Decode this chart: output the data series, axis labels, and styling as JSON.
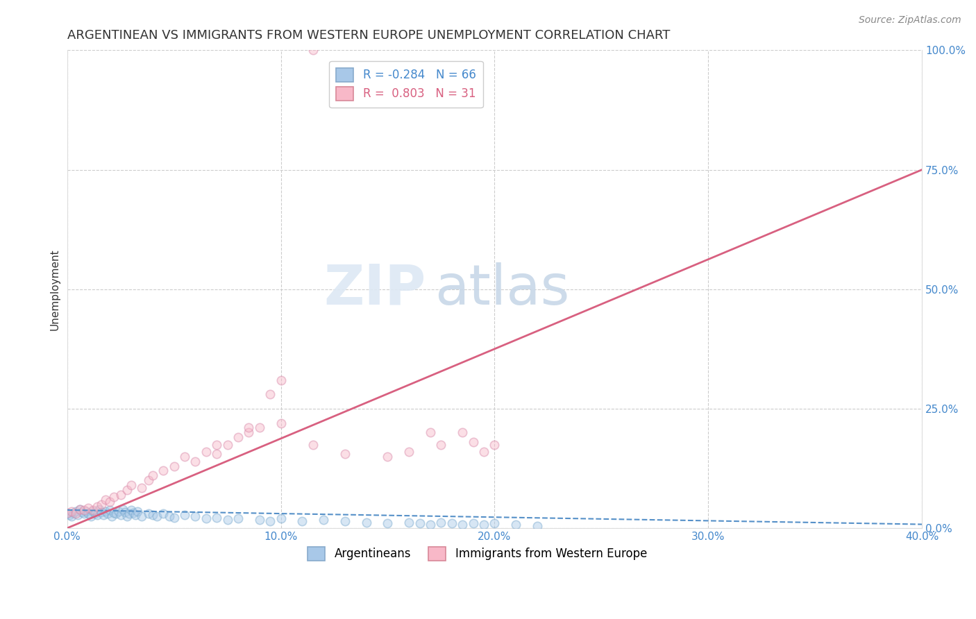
{
  "title": "ARGENTINEAN VS IMMIGRANTS FROM WESTERN EUROPE UNEMPLOYMENT CORRELATION CHART",
  "source": "Source: ZipAtlas.com",
  "xlabel_ticks": [
    "0.0%",
    "10.0%",
    "20.0%",
    "30.0%",
    "40.0%"
  ],
  "ylabel_ticks_right": [
    "0.0%",
    "25.0%",
    "50.0%",
    "75.0%",
    "100.0%"
  ],
  "ylabel_label": "Unemployment",
  "watermark_zip": "ZIP",
  "watermark_atlas": "atlas",
  "legend_entries": [
    {
      "label": "Argentineans",
      "color": "#a8c8e8",
      "outline": "#88aacc",
      "R": "-0.284",
      "N": "66"
    },
    {
      "label": "Immigrants from Western Europe",
      "color": "#f8b8c8",
      "outline": "#d88898",
      "R": "0.803",
      "N": "31"
    }
  ],
  "blue_scatter_x": [
    0.0,
    0.001,
    0.002,
    0.003,
    0.004,
    0.005,
    0.006,
    0.007,
    0.008,
    0.009,
    0.01,
    0.011,
    0.012,
    0.013,
    0.014,
    0.015,
    0.016,
    0.017,
    0.018,
    0.019,
    0.02,
    0.021,
    0.022,
    0.023,
    0.024,
    0.025,
    0.026,
    0.027,
    0.028,
    0.029,
    0.03,
    0.031,
    0.032,
    0.033,
    0.035,
    0.038,
    0.04,
    0.042,
    0.045,
    0.048,
    0.05,
    0.055,
    0.06,
    0.065,
    0.07,
    0.075,
    0.08,
    0.09,
    0.095,
    0.1,
    0.11,
    0.12,
    0.13,
    0.14,
    0.15,
    0.16,
    0.165,
    0.17,
    0.175,
    0.18,
    0.185,
    0.19,
    0.195,
    0.2,
    0.21,
    0.22
  ],
  "blue_scatter_y": [
    0.03,
    0.028,
    0.025,
    0.032,
    0.035,
    0.028,
    0.04,
    0.033,
    0.03,
    0.035,
    0.03,
    0.025,
    0.035,
    0.03,
    0.028,
    0.04,
    0.033,
    0.028,
    0.035,
    0.03,
    0.038,
    0.025,
    0.032,
    0.03,
    0.035,
    0.028,
    0.04,
    0.033,
    0.025,
    0.03,
    0.038,
    0.032,
    0.028,
    0.035,
    0.025,
    0.03,
    0.028,
    0.025,
    0.03,
    0.025,
    0.022,
    0.028,
    0.025,
    0.02,
    0.022,
    0.018,
    0.02,
    0.018,
    0.015,
    0.02,
    0.015,
    0.018,
    0.015,
    0.012,
    0.01,
    0.012,
    0.01,
    0.008,
    0.012,
    0.01,
    0.008,
    0.01,
    0.008,
    0.01,
    0.008,
    0.005
  ],
  "pink_scatter_x": [
    0.0,
    0.002,
    0.004,
    0.006,
    0.008,
    0.01,
    0.012,
    0.014,
    0.016,
    0.018,
    0.02,
    0.022,
    0.025,
    0.028,
    0.03,
    0.035,
    0.038,
    0.04,
    0.045,
    0.05,
    0.055,
    0.06,
    0.065,
    0.07,
    0.075,
    0.08,
    0.085,
    0.09,
    0.095,
    0.1,
    0.115
  ],
  "pink_scatter_y": [
    0.032,
    0.035,
    0.03,
    0.04,
    0.038,
    0.042,
    0.038,
    0.045,
    0.05,
    0.06,
    0.055,
    0.065,
    0.07,
    0.08,
    0.09,
    0.085,
    0.1,
    0.11,
    0.12,
    0.13,
    0.15,
    0.14,
    0.16,
    0.155,
    0.175,
    0.19,
    0.2,
    0.21,
    0.28,
    0.31,
    1.0
  ],
  "pink_extra_x": [
    0.07,
    0.085,
    0.1,
    0.115,
    0.13,
    0.15,
    0.16,
    0.17,
    0.175,
    0.185,
    0.19,
    0.195,
    0.2
  ],
  "pink_extra_y": [
    0.175,
    0.21,
    0.22,
    0.175,
    0.155,
    0.15,
    0.16,
    0.2,
    0.175,
    0.2,
    0.18,
    0.16,
    0.175
  ],
  "blue_line_x": [
    0.0,
    0.4
  ],
  "blue_line_y": [
    0.038,
    0.008
  ],
  "pink_line_x": [
    0.0,
    0.4
  ],
  "pink_line_y": [
    0.0,
    0.75
  ],
  "xlim": [
    0.0,
    0.4
  ],
  "ylim": [
    0.0,
    1.0
  ],
  "scatter_alpha": 0.45,
  "scatter_size": 80,
  "blue_color": "#a8c8e8",
  "blue_edge": "#7aaace",
  "pink_color": "#f8b8c8",
  "pink_edge": "#d888a8",
  "blue_line_color": "#5590c8",
  "pink_line_color": "#d86080",
  "grid_color": "#cccccc",
  "background_color": "#ffffff",
  "title_fontsize": 13,
  "axis_label_fontsize": 11,
  "tick_fontsize": 11,
  "source_fontsize": 10
}
